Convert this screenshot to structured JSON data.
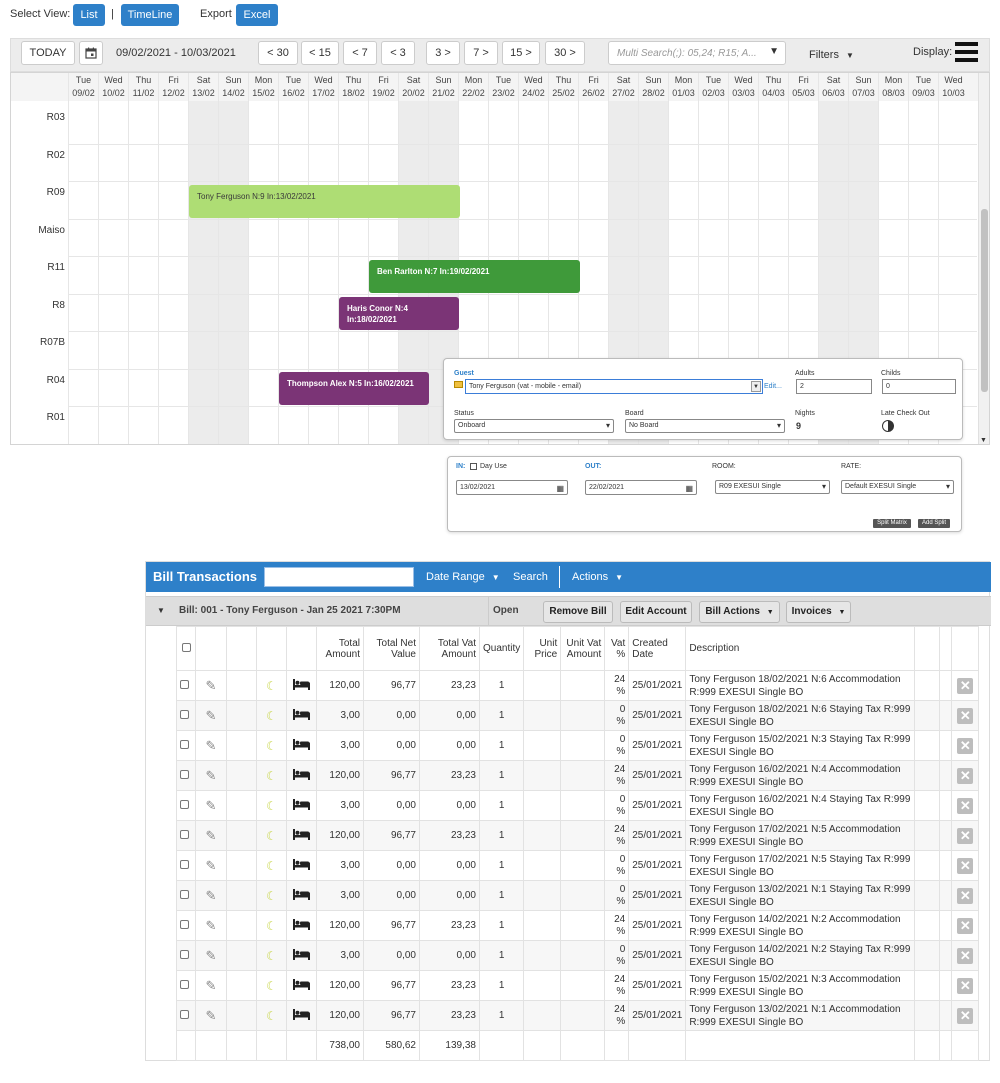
{
  "toolbar": {
    "select_view_label": "Select View:",
    "list_label": "List",
    "separator": "|",
    "timeline_label": "TimeLine",
    "export_label": "Export",
    "excel_label": "Excel"
  },
  "nav": {
    "today_label": "TODAY",
    "date_range": "09/02/2021 - 10/03/2021",
    "back_buttons": [
      "< 30",
      "< 15",
      "< 7",
      "< 3"
    ],
    "forward_buttons": [
      "3 >",
      "7 >",
      "15 >",
      "30 >"
    ],
    "search_placeholder": "Multi Search(;): 05,24; R15; A...",
    "filters_label": "Filters",
    "display_label": "Display:"
  },
  "calendar": {
    "days": [
      {
        "dow": "Tue",
        "date": "09/02"
      },
      {
        "dow": "Wed",
        "date": "10/02"
      },
      {
        "dow": "Thu",
        "date": "11/02"
      },
      {
        "dow": "Fri",
        "date": "12/02"
      },
      {
        "dow": "Sat",
        "date": "13/02"
      },
      {
        "dow": "Sun",
        "date": "14/02"
      },
      {
        "dow": "Mon",
        "date": "15/02"
      },
      {
        "dow": "Tue",
        "date": "16/02"
      },
      {
        "dow": "Wed",
        "date": "17/02"
      },
      {
        "dow": "Thu",
        "date": "18/02"
      },
      {
        "dow": "Fri",
        "date": "19/02"
      },
      {
        "dow": "Sat",
        "date": "20/02"
      },
      {
        "dow": "Sun",
        "date": "21/02"
      },
      {
        "dow": "Mon",
        "date": "22/02"
      },
      {
        "dow": "Tue",
        "date": "23/02"
      },
      {
        "dow": "Wed",
        "date": "24/02"
      },
      {
        "dow": "Thu",
        "date": "25/02"
      },
      {
        "dow": "Fri",
        "date": "26/02"
      },
      {
        "dow": "Sat",
        "date": "27/02"
      },
      {
        "dow": "Sun",
        "date": "28/02"
      },
      {
        "dow": "Mon",
        "date": "01/03"
      },
      {
        "dow": "Tue",
        "date": "02/03"
      },
      {
        "dow": "Wed",
        "date": "03/03"
      },
      {
        "dow": "Thu",
        "date": "04/03"
      },
      {
        "dow": "Fri",
        "date": "05/03"
      },
      {
        "dow": "Sat",
        "date": "06/03"
      },
      {
        "dow": "Sun",
        "date": "07/03"
      },
      {
        "dow": "Mon",
        "date": "08/03"
      },
      {
        "dow": "Tue",
        "date": "09/03"
      },
      {
        "dow": "Wed",
        "date": "10/03"
      }
    ],
    "rooms": [
      "R03",
      "R02",
      "R09",
      "Maiso",
      "R11",
      "R8",
      "R07B",
      "R04",
      "R01"
    ],
    "reservations": [
      {
        "label": "Tony Ferguson N:9 In:13/02/2021",
        "color": "#aedd74",
        "text_color": "#3a3a3a"
      },
      {
        "label": "Ben Rarlton N:7 In:19/02/2021",
        "color": "#3f9a3a",
        "text_color": "#ffffff"
      },
      {
        "label": "Haris Conor N:4 In:18/02/2021",
        "color": "#7b3476",
        "text_color": "#ffffff"
      },
      {
        "label": "Thompson Alex N:5 In:16/02/2021",
        "color": "#7b3476",
        "text_color": "#ffffff"
      }
    ]
  },
  "guest_dialog": {
    "guest_label": "Guest",
    "guest_value": "Tony Ferguson   (vat - mobile - email)",
    "edit_link": "Edit...",
    "adults_label": "Adults",
    "adults_value": "2",
    "childs_label": "Childs",
    "childs_value": "0",
    "status_label": "Status",
    "status_value": "Onboard",
    "board_label": "Board",
    "board_value": "No Board",
    "nights_label": "Nights",
    "nights_value": "9",
    "late_checkout_label": "Late Check Out"
  },
  "stay_dialog": {
    "in_label": "IN:",
    "day_use_label": "Day Use",
    "out_label": "OUT:",
    "room_label": "ROOM:",
    "rate_label": "RATE:",
    "in_value": "13/02/2021",
    "out_value": "22/02/2021",
    "room_value": "R09 EXESUI Single",
    "rate_value": "Default EXESUI Single",
    "split_matrix_label": "Split Matrix",
    "add_split_label": "Add Split"
  },
  "bill": {
    "title": "Bill Transactions",
    "date_range_label": "Date Range",
    "search_label": "Search",
    "actions_label": "Actions",
    "group_title": "Bill: 001 - Tony Ferguson - Jan 25 2021 7:30PM",
    "group_status": "Open",
    "remove_bill_label": "Remove Bill",
    "edit_account_label": "Edit Account",
    "bill_actions_label": "Bill Actions",
    "invoices_label": "Invoices",
    "columns": [
      "Total Amount",
      "Total Net Value",
      "Total Vat Amount",
      "Quantity",
      "Unit Price",
      "Unit Vat Amount",
      "Vat %",
      "Created Date",
      "Description"
    ],
    "rows": [
      {
        "total": "120,00",
        "net": "96,77",
        "vat": "23,23",
        "qty": "1",
        "vat_pct": "24 %",
        "date": "25/01/2021",
        "desc": "Tony Ferguson 18/02/2021 N:6 Accommodation R:999 EXESUI Single BO"
      },
      {
        "total": "3,00",
        "net": "0,00",
        "vat": "0,00",
        "qty": "1",
        "vat_pct": "0 %",
        "date": "25/01/2021",
        "desc": "Tony Ferguson 18/02/2021 N:6 Staying Tax R:999 EXESUI Single BO"
      },
      {
        "total": "3,00",
        "net": "0,00",
        "vat": "0,00",
        "qty": "1",
        "vat_pct": "0 %",
        "date": "25/01/2021",
        "desc": "Tony Ferguson 15/02/2021 N:3 Staying Tax R:999 EXESUI Single BO"
      },
      {
        "total": "120,00",
        "net": "96,77",
        "vat": "23,23",
        "qty": "1",
        "vat_pct": "24 %",
        "date": "25/01/2021",
        "desc": "Tony Ferguson 16/02/2021 N:4 Accommodation R:999 EXESUI Single BO"
      },
      {
        "total": "3,00",
        "net": "0,00",
        "vat": "0,00",
        "qty": "1",
        "vat_pct": "0 %",
        "date": "25/01/2021",
        "desc": "Tony Ferguson 16/02/2021 N:4 Staying Tax R:999 EXESUI Single BO"
      },
      {
        "total": "120,00",
        "net": "96,77",
        "vat": "23,23",
        "qty": "1",
        "vat_pct": "24 %",
        "date": "25/01/2021",
        "desc": "Tony Ferguson 17/02/2021 N:5 Accommodation R:999 EXESUI Single BO"
      },
      {
        "total": "3,00",
        "net": "0,00",
        "vat": "0,00",
        "qty": "1",
        "vat_pct": "0 %",
        "date": "25/01/2021",
        "desc": "Tony Ferguson 17/02/2021 N:5 Staying Tax R:999 EXESUI Single BO"
      },
      {
        "total": "3,00",
        "net": "0,00",
        "vat": "0,00",
        "qty": "1",
        "vat_pct": "0 %",
        "date": "25/01/2021",
        "desc": "Tony Ferguson 13/02/2021 N:1 Staying Tax R:999 EXESUI Single BO"
      },
      {
        "total": "120,00",
        "net": "96,77",
        "vat": "23,23",
        "qty": "1",
        "vat_pct": "24 %",
        "date": "25/01/2021",
        "desc": "Tony Ferguson 14/02/2021 N:2 Accommodation R:999 EXESUI Single BO"
      },
      {
        "total": "3,00",
        "net": "0,00",
        "vat": "0,00",
        "qty": "1",
        "vat_pct": "0 %",
        "date": "25/01/2021",
        "desc": "Tony Ferguson 14/02/2021 N:2 Staying Tax R:999 EXESUI Single BO"
      },
      {
        "total": "120,00",
        "net": "96,77",
        "vat": "23,23",
        "qty": "1",
        "vat_pct": "24 %",
        "date": "25/01/2021",
        "desc": "Tony Ferguson 15/02/2021 N:3 Accommodation R:999 EXESUI Single BO"
      },
      {
        "total": "120,00",
        "net": "96,77",
        "vat": "23,23",
        "qty": "1",
        "vat_pct": "24 %",
        "date": "25/01/2021",
        "desc": "Tony Ferguson 13/02/2021 N:1 Accommodation R:999 EXESUI Single BO"
      }
    ],
    "totals": {
      "total": "738,00",
      "net": "580,62",
      "vat": "139,38"
    }
  }
}
